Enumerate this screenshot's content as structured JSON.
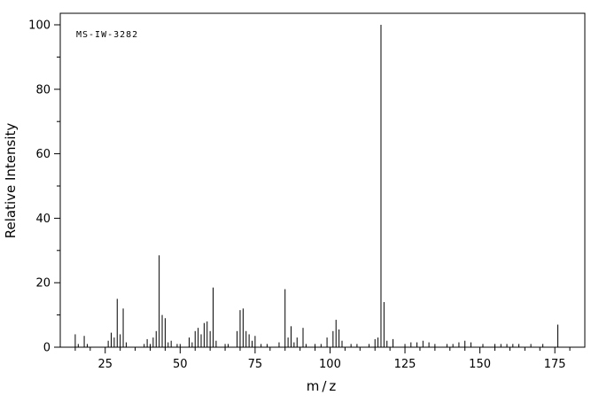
{
  "colors": {
    "background": "#ffffff",
    "foreground": "#000000"
  },
  "chart_data": {
    "type": "bar",
    "subtype": "mass-spectrum",
    "title": "",
    "annotation": "MS-IW-3282",
    "xlabel": "m/z",
    "ylabel": "Relative Intensity",
    "xlim": [
      10,
      185
    ],
    "ylim": [
      0,
      100
    ],
    "xticks": [
      25,
      50,
      75,
      100,
      125,
      150,
      175
    ],
    "yticks": [
      0,
      20,
      40,
      60,
      80,
      100
    ],
    "x_minor_step": 5,
    "y_minor_step": 10,
    "grid": false,
    "legend": false,
    "base_peak_mz": 117,
    "peaks": [
      [
        15,
        4
      ],
      [
        16,
        1
      ],
      [
        18,
        3.5
      ],
      [
        19,
        1
      ],
      [
        26,
        2
      ],
      [
        27,
        4.5
      ],
      [
        28,
        3
      ],
      [
        29,
        15
      ],
      [
        30,
        4
      ],
      [
        31,
        12
      ],
      [
        32,
        1.5
      ],
      [
        38,
        1
      ],
      [
        39,
        2.5
      ],
      [
        40,
        1
      ],
      [
        41,
        3
      ],
      [
        42,
        5
      ],
      [
        43,
        28.5
      ],
      [
        44,
        10
      ],
      [
        45,
        9
      ],
      [
        46,
        1.5
      ],
      [
        47,
        2
      ],
      [
        49,
        1
      ],
      [
        50,
        1
      ],
      [
        53,
        3
      ],
      [
        54,
        1.5
      ],
      [
        55,
        5
      ],
      [
        56,
        6
      ],
      [
        57,
        4
      ],
      [
        58,
        7.5
      ],
      [
        59,
        8
      ],
      [
        60,
        5
      ],
      [
        61,
        18.5
      ],
      [
        62,
        2
      ],
      [
        65,
        1
      ],
      [
        66,
        1
      ],
      [
        69,
        5
      ],
      [
        70,
        11.5
      ],
      [
        71,
        12
      ],
      [
        72,
        5
      ],
      [
        73,
        4
      ],
      [
        74,
        2
      ],
      [
        75,
        3.5
      ],
      [
        77,
        1
      ],
      [
        79,
        1
      ],
      [
        83,
        1.5
      ],
      [
        85,
        18
      ],
      [
        86,
        3
      ],
      [
        87,
        6.5
      ],
      [
        88,
        1.5
      ],
      [
        89,
        3
      ],
      [
        91,
        6
      ],
      [
        92,
        1
      ],
      [
        95,
        1
      ],
      [
        97,
        1
      ],
      [
        99,
        3
      ],
      [
        101,
        5
      ],
      [
        102,
        8.5
      ],
      [
        103,
        5.5
      ],
      [
        104,
        2
      ],
      [
        107,
        1
      ],
      [
        109,
        1
      ],
      [
        113,
        1
      ],
      [
        115,
        2.5
      ],
      [
        116,
        3
      ],
      [
        117,
        100
      ],
      [
        118,
        14
      ],
      [
        119,
        2
      ],
      [
        121,
        2.5
      ],
      [
        125,
        1
      ],
      [
        127,
        1.5
      ],
      [
        129,
        1.5
      ],
      [
        131,
        2
      ],
      [
        133,
        1.5
      ],
      [
        135,
        1
      ],
      [
        139,
        1
      ],
      [
        141,
        1
      ],
      [
        143,
        1.5
      ],
      [
        145,
        2
      ],
      [
        147,
        1.5
      ],
      [
        151,
        1
      ],
      [
        155,
        1
      ],
      [
        157,
        1
      ],
      [
        159,
        1
      ],
      [
        161,
        1
      ],
      [
        163,
        1
      ],
      [
        167,
        1
      ],
      [
        171,
        1
      ],
      [
        176,
        7
      ]
    ]
  }
}
